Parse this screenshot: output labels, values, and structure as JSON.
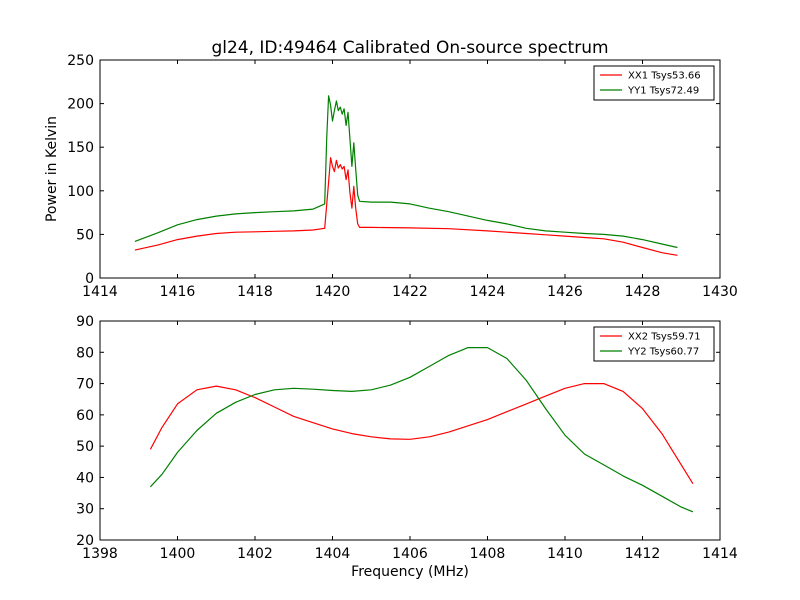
{
  "chart_data": [
    {
      "type": "line",
      "title": "gl24, ID:49464 Calibrated On-source spectrum",
      "xlabel": "",
      "ylabel": "Power in Kelvin",
      "xlim": [
        1414,
        1430
      ],
      "ylim": [
        0,
        250
      ],
      "xticks": [
        1414,
        1416,
        1418,
        1420,
        1422,
        1424,
        1426,
        1428,
        1430
      ],
      "yticks": [
        0,
        50,
        100,
        150,
        200,
        250
      ],
      "grid": false,
      "legend_position": "top-right",
      "series": [
        {
          "name": "XX1 Tsys53.66",
          "color": "#ff0000",
          "points": [
            [
              1414.9,
              32
            ],
            [
              1415.5,
              38
            ],
            [
              1416,
              44
            ],
            [
              1416.5,
              48
            ],
            [
              1417,
              51
            ],
            [
              1417.5,
              52.5
            ],
            [
              1418,
              53
            ],
            [
              1418.5,
              53.5
            ],
            [
              1419,
              54
            ],
            [
              1419.5,
              55
            ],
            [
              1419.8,
              57
            ],
            [
              1419.9,
              110
            ],
            [
              1419.95,
              138
            ],
            [
              1420.0,
              128
            ],
            [
              1420.05,
              122
            ],
            [
              1420.1,
              135
            ],
            [
              1420.15,
              126
            ],
            [
              1420.2,
              130
            ],
            [
              1420.25,
              125
            ],
            [
              1420.3,
              128
            ],
            [
              1420.35,
              113
            ],
            [
              1420.4,
              124
            ],
            [
              1420.45,
              98
            ],
            [
              1420.5,
              80
            ],
            [
              1420.55,
              105
            ],
            [
              1420.6,
              80
            ],
            [
              1420.65,
              62
            ],
            [
              1420.7,
              58
            ],
            [
              1421,
              58
            ],
            [
              1422,
              57.5
            ],
            [
              1423,
              56.5
            ],
            [
              1424,
              54
            ],
            [
              1424.5,
              52.5
            ],
            [
              1425,
              51
            ],
            [
              1425.5,
              49.5
            ],
            [
              1426,
              48
            ],
            [
              1426.5,
              46.5
            ],
            [
              1427,
              45
            ],
            [
              1427.5,
              41
            ],
            [
              1428,
              35
            ],
            [
              1428.5,
              29
            ],
            [
              1428.9,
              26
            ]
          ]
        },
        {
          "name": "YY1 Tsys72.49",
          "color": "#008000",
          "points": [
            [
              1414.9,
              42
            ],
            [
              1415.5,
              52
            ],
            [
              1416,
              61
            ],
            [
              1416.5,
              67
            ],
            [
              1417,
              71
            ],
            [
              1417.5,
              73.5
            ],
            [
              1418,
              75
            ],
            [
              1418.5,
              76
            ],
            [
              1419,
              77
            ],
            [
              1419.5,
              79
            ],
            [
              1419.8,
              85
            ],
            [
              1419.85,
              160
            ],
            [
              1419.9,
              209
            ],
            [
              1419.95,
              198
            ],
            [
              1420.0,
              180
            ],
            [
              1420.05,
              192
            ],
            [
              1420.1,
              203
            ],
            [
              1420.15,
              192
            ],
            [
              1420.2,
              196
            ],
            [
              1420.25,
              188
            ],
            [
              1420.3,
              194
            ],
            [
              1420.35,
              175
            ],
            [
              1420.4,
              190
            ],
            [
              1420.45,
              160
            ],
            [
              1420.5,
              128
            ],
            [
              1420.55,
              155
            ],
            [
              1420.6,
              125
            ],
            [
              1420.65,
              95
            ],
            [
              1420.7,
              88
            ],
            [
              1421,
              87
            ],
            [
              1421.5,
              87
            ],
            [
              1422,
              85
            ],
            [
              1422.5,
              80
            ],
            [
              1423,
              76
            ],
            [
              1423.5,
              71
            ],
            [
              1424,
              66
            ],
            [
              1424.5,
              62
            ],
            [
              1425,
              57
            ],
            [
              1425.5,
              54
            ],
            [
              1426,
              52.5
            ],
            [
              1426.5,
              51
            ],
            [
              1427,
              50
            ],
            [
              1427.5,
              48
            ],
            [
              1428,
              44
            ],
            [
              1428.5,
              39
            ],
            [
              1428.9,
              35
            ]
          ]
        }
      ]
    },
    {
      "type": "line",
      "title": "",
      "xlabel": "Frequency (MHz)",
      "ylabel": "",
      "xlim": [
        1398,
        1414
      ],
      "ylim": [
        20,
        90
      ],
      "xticks": [
        1398,
        1400,
        1402,
        1404,
        1406,
        1408,
        1410,
        1412,
        1414
      ],
      "yticks": [
        20,
        30,
        40,
        50,
        60,
        70,
        80,
        90
      ],
      "grid": false,
      "legend_position": "top-right",
      "series": [
        {
          "name": "XX2 Tsys59.71",
          "color": "#ff0000",
          "points": [
            [
              1399.3,
              49
            ],
            [
              1399.6,
              56
            ],
            [
              1400,
              63.5
            ],
            [
              1400.5,
              68
            ],
            [
              1401,
              69.2
            ],
            [
              1401.5,
              68
            ],
            [
              1402,
              65.5
            ],
            [
              1402.5,
              62.5
            ],
            [
              1403,
              59.5
            ],
            [
              1403.5,
              57.5
            ],
            [
              1404,
              55.5
            ],
            [
              1404.5,
              54
            ],
            [
              1405,
              53
            ],
            [
              1405.5,
              52.3
            ],
            [
              1406,
              52.2
            ],
            [
              1406.5,
              53
            ],
            [
              1407,
              54.5
            ],
            [
              1407.5,
              56.5
            ],
            [
              1408,
              58.5
            ],
            [
              1408.5,
              61
            ],
            [
              1409,
              63.5
            ],
            [
              1409.5,
              66
            ],
            [
              1410,
              68.5
            ],
            [
              1410.5,
              70
            ],
            [
              1411,
              70
            ],
            [
              1411.5,
              67.5
            ],
            [
              1412,
              62
            ],
            [
              1412.5,
              54
            ],
            [
              1413,
              44
            ],
            [
              1413.3,
              38
            ]
          ]
        },
        {
          "name": "YY2 Tsys60.77",
          "color": "#008000",
          "points": [
            [
              1399.3,
              37
            ],
            [
              1399.6,
              41
            ],
            [
              1400,
              48
            ],
            [
              1400.5,
              55
            ],
            [
              1401,
              60.5
            ],
            [
              1401.5,
              64
            ],
            [
              1402,
              66.5
            ],
            [
              1402.5,
              68
            ],
            [
              1403,
              68.5
            ],
            [
              1403.5,
              68.2
            ],
            [
              1404,
              67.8
            ],
            [
              1404.5,
              67.5
            ],
            [
              1405,
              68
            ],
            [
              1405.5,
              69.5
            ],
            [
              1406,
              72
            ],
            [
              1406.5,
              75.5
            ],
            [
              1407,
              79
            ],
            [
              1407.5,
              81.5
            ],
            [
              1408,
              81.5
            ],
            [
              1408.5,
              78
            ],
            [
              1409,
              71
            ],
            [
              1409.5,
              62
            ],
            [
              1410,
              53.5
            ],
            [
              1410.5,
              47.5
            ],
            [
              1411,
              44
            ],
            [
              1411.5,
              40.5
            ],
            [
              1412,
              37.5
            ],
            [
              1412.5,
              34
            ],
            [
              1413,
              30.5
            ],
            [
              1413.3,
              29
            ]
          ]
        }
      ]
    }
  ]
}
